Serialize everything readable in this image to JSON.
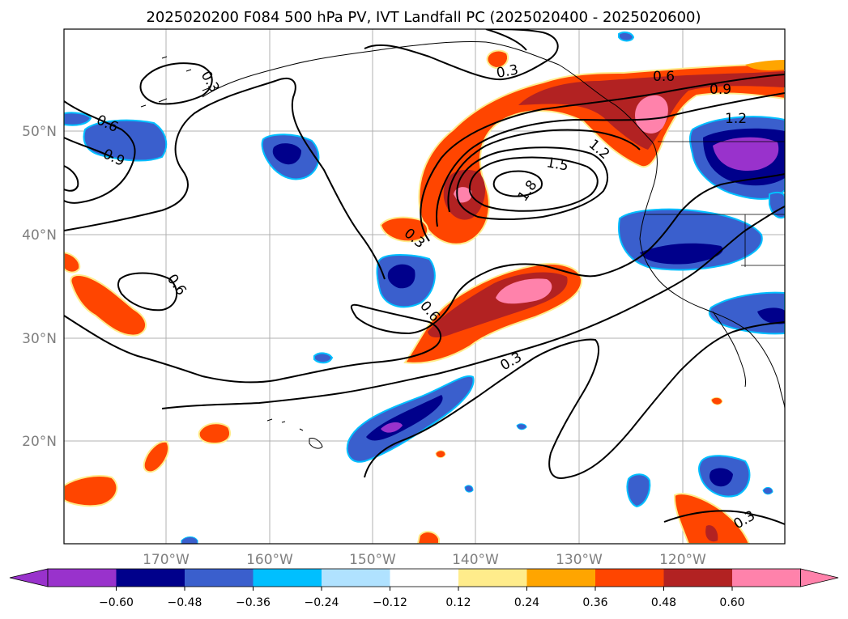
{
  "title": "2025020200 F084 500 hPa PV, IVT Landfall PC (2025020400 - 2025020600)",
  "map": {
    "lon_labels": [
      "170°W",
      "160°W",
      "150°W",
      "140°W",
      "130°W",
      "120°W"
    ],
    "lat_labels": [
      "50°N",
      "40°N",
      "30°N",
      "20°N"
    ],
    "contour_labels": [
      "0.3",
      "0.3",
      "0.3",
      "0.3",
      "0.3",
      "0.6",
      "0.6",
      "0.6",
      "0.6",
      "0.9",
      "0.9",
      "1.2",
      "1.2",
      "1.5",
      "1.8"
    ],
    "colors": {
      "pos_036": "#ff4500",
      "pos_048": "#b22222",
      "pos_060": "#ff82ab",
      "neg_036": "#3a5fcd",
      "neg_048": "#00008b",
      "neg_060": "#9932cc"
    }
  },
  "colorbar": {
    "tick_labels": [
      "−0.60",
      "−0.48",
      "−0.36",
      "−0.24",
      "−0.12",
      "0.12",
      "0.24",
      "0.36",
      "0.48",
      "0.60"
    ],
    "colors": [
      "#9932cc",
      "#00008b",
      "#3a5fcd",
      "#00bfff",
      "#b0e2ff",
      "#ffffff",
      "#ffec8b",
      "#ffa500",
      "#ff4500",
      "#b22222",
      "#ff82ab",
      "#ff82ab"
    ]
  }
}
